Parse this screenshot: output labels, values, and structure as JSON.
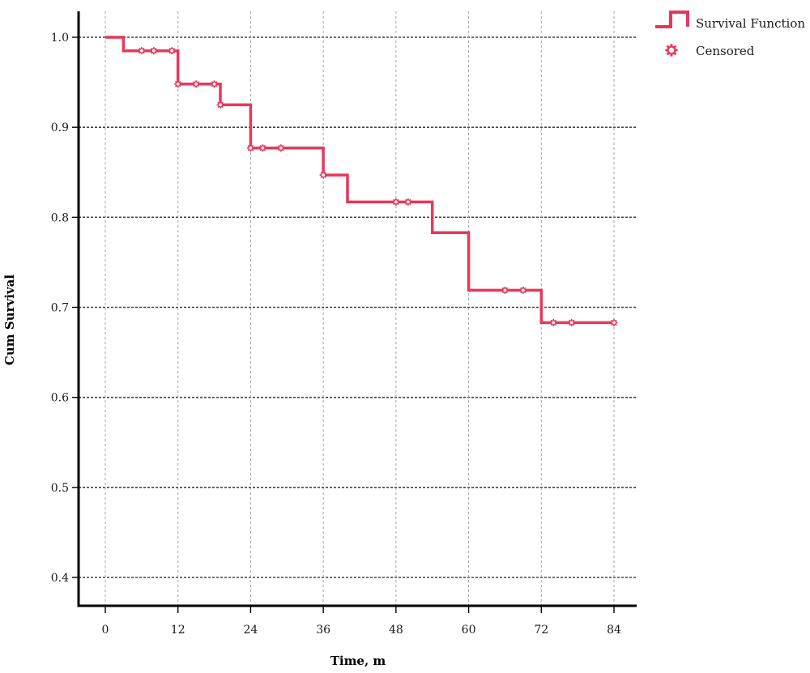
{
  "chart_data": {
    "type": "line",
    "subtype": "kaplan-meier",
    "xlabel": "Time, m",
    "ylabel": "Cum Survival",
    "xlim": [
      0,
      84
    ],
    "ylim": [
      0.4,
      1.0
    ],
    "xticks": [
      0,
      12,
      24,
      36,
      48,
      60,
      72,
      84
    ],
    "xtick_labels": [
      "0",
      "12",
      "24",
      "36",
      "48",
      "60",
      "72",
      "84"
    ],
    "yticks": [
      0.4,
      0.5,
      0.6,
      0.7,
      0.8,
      0.9,
      1.0
    ],
    "ytick_labels": [
      "0.4",
      "0.5",
      "0.6",
      "0.7",
      "0.8",
      "0.9",
      "1.0"
    ],
    "grid": true,
    "legend_position": "top-right",
    "colors": {
      "survival": "#e8375a",
      "censored": "#e8375a",
      "grid": "#444444",
      "axis": "#000000"
    },
    "series": [
      {
        "name": "Survival Function",
        "style": "step",
        "points": [
          [
            0,
            1.0
          ],
          [
            3,
            1.0
          ],
          [
            3,
            0.985
          ],
          [
            12,
            0.985
          ],
          [
            12,
            0.948
          ],
          [
            19,
            0.948
          ],
          [
            19,
            0.925
          ],
          [
            24,
            0.925
          ],
          [
            24,
            0.877
          ],
          [
            36,
            0.877
          ],
          [
            36,
            0.847
          ],
          [
            40,
            0.847
          ],
          [
            40,
            0.817
          ],
          [
            54,
            0.817
          ],
          [
            54,
            0.783
          ],
          [
            60,
            0.783
          ],
          [
            60,
            0.719
          ],
          [
            72,
            0.719
          ],
          [
            72,
            0.683
          ],
          [
            84,
            0.683
          ]
        ]
      },
      {
        "name": "Censored",
        "style": "markers",
        "points": [
          [
            6,
            0.985
          ],
          [
            8,
            0.985
          ],
          [
            11,
            0.985
          ],
          [
            12,
            0.948
          ],
          [
            15,
            0.948
          ],
          [
            18,
            0.948
          ],
          [
            19,
            0.925
          ],
          [
            24,
            0.877
          ],
          [
            26,
            0.877
          ],
          [
            29,
            0.877
          ],
          [
            36,
            0.847
          ],
          [
            48,
            0.817
          ],
          [
            50,
            0.817
          ],
          [
            66,
            0.719
          ],
          [
            69,
            0.719
          ],
          [
            74,
            0.683
          ],
          [
            77,
            0.683
          ],
          [
            84,
            0.683
          ]
        ]
      }
    ],
    "legend": [
      "Survival Function",
      "Censored"
    ]
  }
}
